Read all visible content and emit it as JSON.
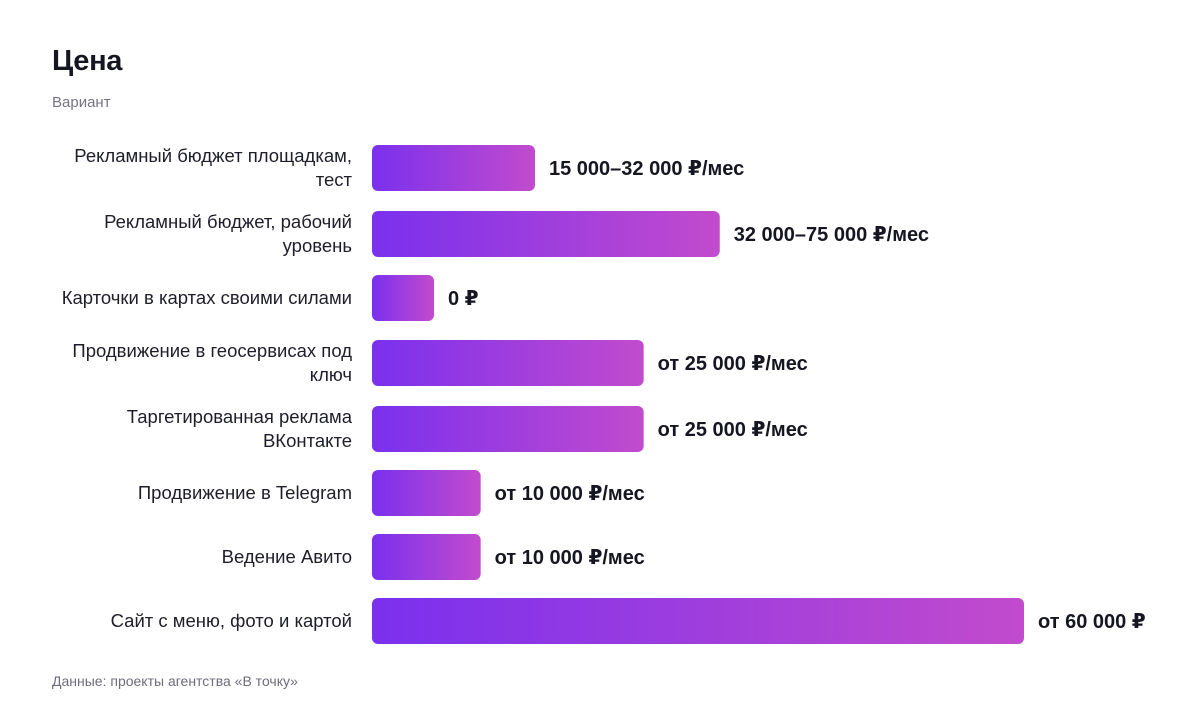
{
  "header": {
    "title": "Цена",
    "subtitle": "Вариант"
  },
  "footer": {
    "source": "Данные: проекты агентства «В точку»"
  },
  "colors": {
    "bar_start": "#7a30ee",
    "bar_end": "#c24bcd",
    "text": "#1c1c28",
    "muted": "#757584"
  },
  "chart_data": {
    "type": "bar",
    "orientation": "horizontal",
    "title": "Цена",
    "subtitle": "Вариант",
    "xlim": [
      0,
      60000
    ],
    "grid": false,
    "legend": "none",
    "categories": [
      [
        "Рекламный бюджет площадкам,",
        "тест"
      ],
      [
        "Рекламный бюджет, рабочий",
        "уровень"
      ],
      [
        "Карточки в картах своими силами"
      ],
      [
        "Продвижение в геосервисах под",
        "ключ"
      ],
      [
        "Таргетированная реклама",
        "ВКонтакте"
      ],
      [
        "Продвижение в Telegram"
      ],
      [
        "Ведение Авито"
      ],
      [
        "Сайт с меню, фото и картой"
      ]
    ],
    "values": [
      15000,
      32000,
      0,
      25000,
      25000,
      10000,
      10000,
      60000
    ],
    "value_labels": [
      "15 000–32 000 ₽/мес",
      "32 000–75 000 ₽/мес",
      "0 ₽",
      "от 25 000 ₽/мес",
      "от 25 000 ₽/мес",
      "от 10 000 ₽/мес",
      "от 10 000 ₽/мес",
      "от 60 000 ₽"
    ]
  }
}
